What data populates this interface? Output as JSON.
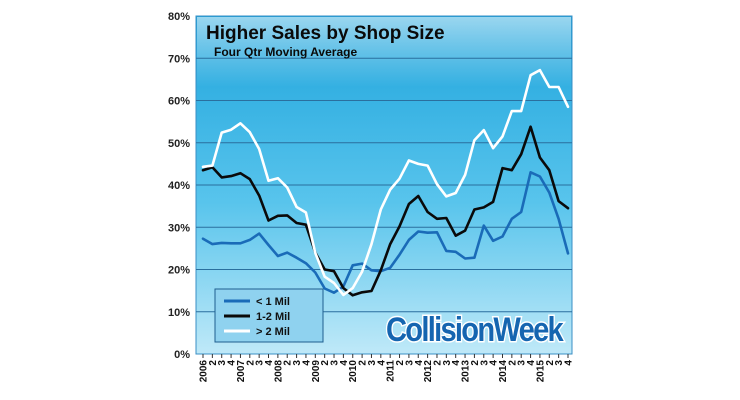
{
  "chart_data": {
    "type": "line",
    "title": "Higher Sales by Shop Size",
    "subtitle": "Four Qtr Moving Average",
    "xlabel": "",
    "ylabel": "",
    "ylim": [
      0,
      80
    ],
    "y_ticks": [
      "0%",
      "10%",
      "20%",
      "30%",
      "40%",
      "50%",
      "60%",
      "70%",
      "80%"
    ],
    "grid": true,
    "legend_position": "bottom-left",
    "x_labels": [
      "2006",
      "2",
      "3",
      "4",
      "2007",
      "2",
      "3",
      "4",
      "2008",
      "2",
      "3",
      "4",
      "2009",
      "2",
      "3",
      "4",
      "2010",
      "2",
      "3",
      "4",
      "2011",
      "2",
      "3",
      "4",
      "2012",
      "2",
      "3",
      "4",
      "2013",
      "2",
      "3",
      "4",
      "2014",
      "2",
      "3",
      "4",
      "2015",
      "2",
      "3",
      "4"
    ],
    "series": [
      {
        "name": "< 1 Mil",
        "color": "#1a6bb8",
        "values": [
          27.3,
          26,
          26.3,
          26.2,
          26.2,
          27,
          28.5,
          25.8,
          23.2,
          24,
          22.8,
          21.5,
          19.3,
          15.5,
          14.5,
          16,
          21,
          21.4,
          19.8,
          19.6,
          20.4,
          23.5,
          27,
          29,
          28.7,
          28.8,
          24.4,
          24.2,
          22.6,
          22.8,
          30.4,
          26.8,
          27.8,
          32,
          33.6,
          43,
          42,
          38.2,
          32,
          23.8
        ]
      },
      {
        "name": "1-2 Mil",
        "color": "#0a0a0a",
        "values": [
          43.5,
          44.2,
          41.8,
          42.1,
          42.8,
          41.4,
          37.5,
          31.6,
          32.7,
          32.8,
          31,
          30.6,
          24,
          20,
          19.6,
          15.6,
          13.9,
          14.6,
          14.9,
          19.8,
          26,
          30.2,
          35.5,
          37.4,
          33.6,
          32,
          32.2,
          28,
          29.2,
          34.2,
          34.7,
          36,
          44,
          43.5,
          47.3,
          53.8,
          46.5,
          43.5,
          36.2,
          34.5
        ]
      },
      {
        "name": "> 2 Mil",
        "color": "#ffffff",
        "values": [
          44.3,
          44.6,
          52.4,
          53.1,
          54.6,
          52.5,
          48.5,
          41,
          41.6,
          39.4,
          34.8,
          33.5,
          23.9,
          18.3,
          16.8,
          14,
          15.6,
          19.5,
          26,
          34.2,
          38.9,
          41.5,
          45.8,
          45,
          44.6,
          40.2,
          37.3,
          38.1,
          42.4,
          50.6,
          53,
          48.7,
          51.5,
          57.5,
          57.5,
          66,
          67.2,
          63.2,
          63.2,
          58.5
        ]
      }
    ]
  },
  "branding": {
    "logo_text": "CollisionWeek"
  }
}
